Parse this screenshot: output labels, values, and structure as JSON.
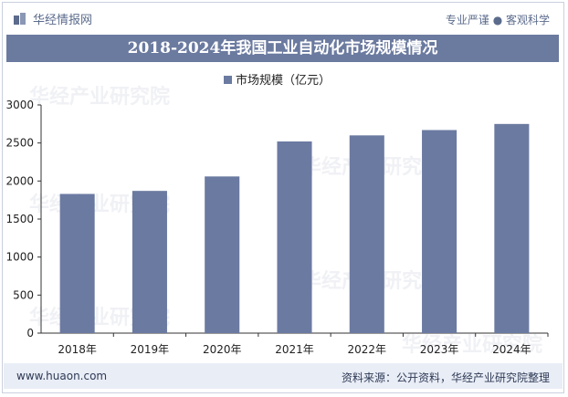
{
  "header": {
    "logo_text": "华经情报网",
    "slogan": "专业严谨 ● 客观科学"
  },
  "footer": {
    "website": "www.huaon.com",
    "source": "资料来源：公开资料，华经产业研究院整理"
  },
  "watermark": {
    "text": "华经产业研究院"
  },
  "colors": {
    "bar": "#6b7aa1",
    "title_bar": "#6b7a9f",
    "footer_bg": "#e9edf6"
  },
  "chart_data": {
    "type": "bar",
    "title": "2018-2024年我国工业自动化市场规模情况",
    "categories": [
      "2018年",
      "2019年",
      "2020年",
      "2021年",
      "2022年",
      "2023年",
      "2024年"
    ],
    "series": [
      {
        "name": "市场规模（亿元）",
        "values": [
          1830,
          1870,
          2060,
          2520,
          2600,
          2670,
          2750
        ]
      }
    ],
    "ylim": [
      0,
      3000
    ],
    "yticks": [
      0,
      500,
      1000,
      1500,
      2000,
      2500,
      3000
    ],
    "legend_position": "top-center",
    "grid": false
  }
}
